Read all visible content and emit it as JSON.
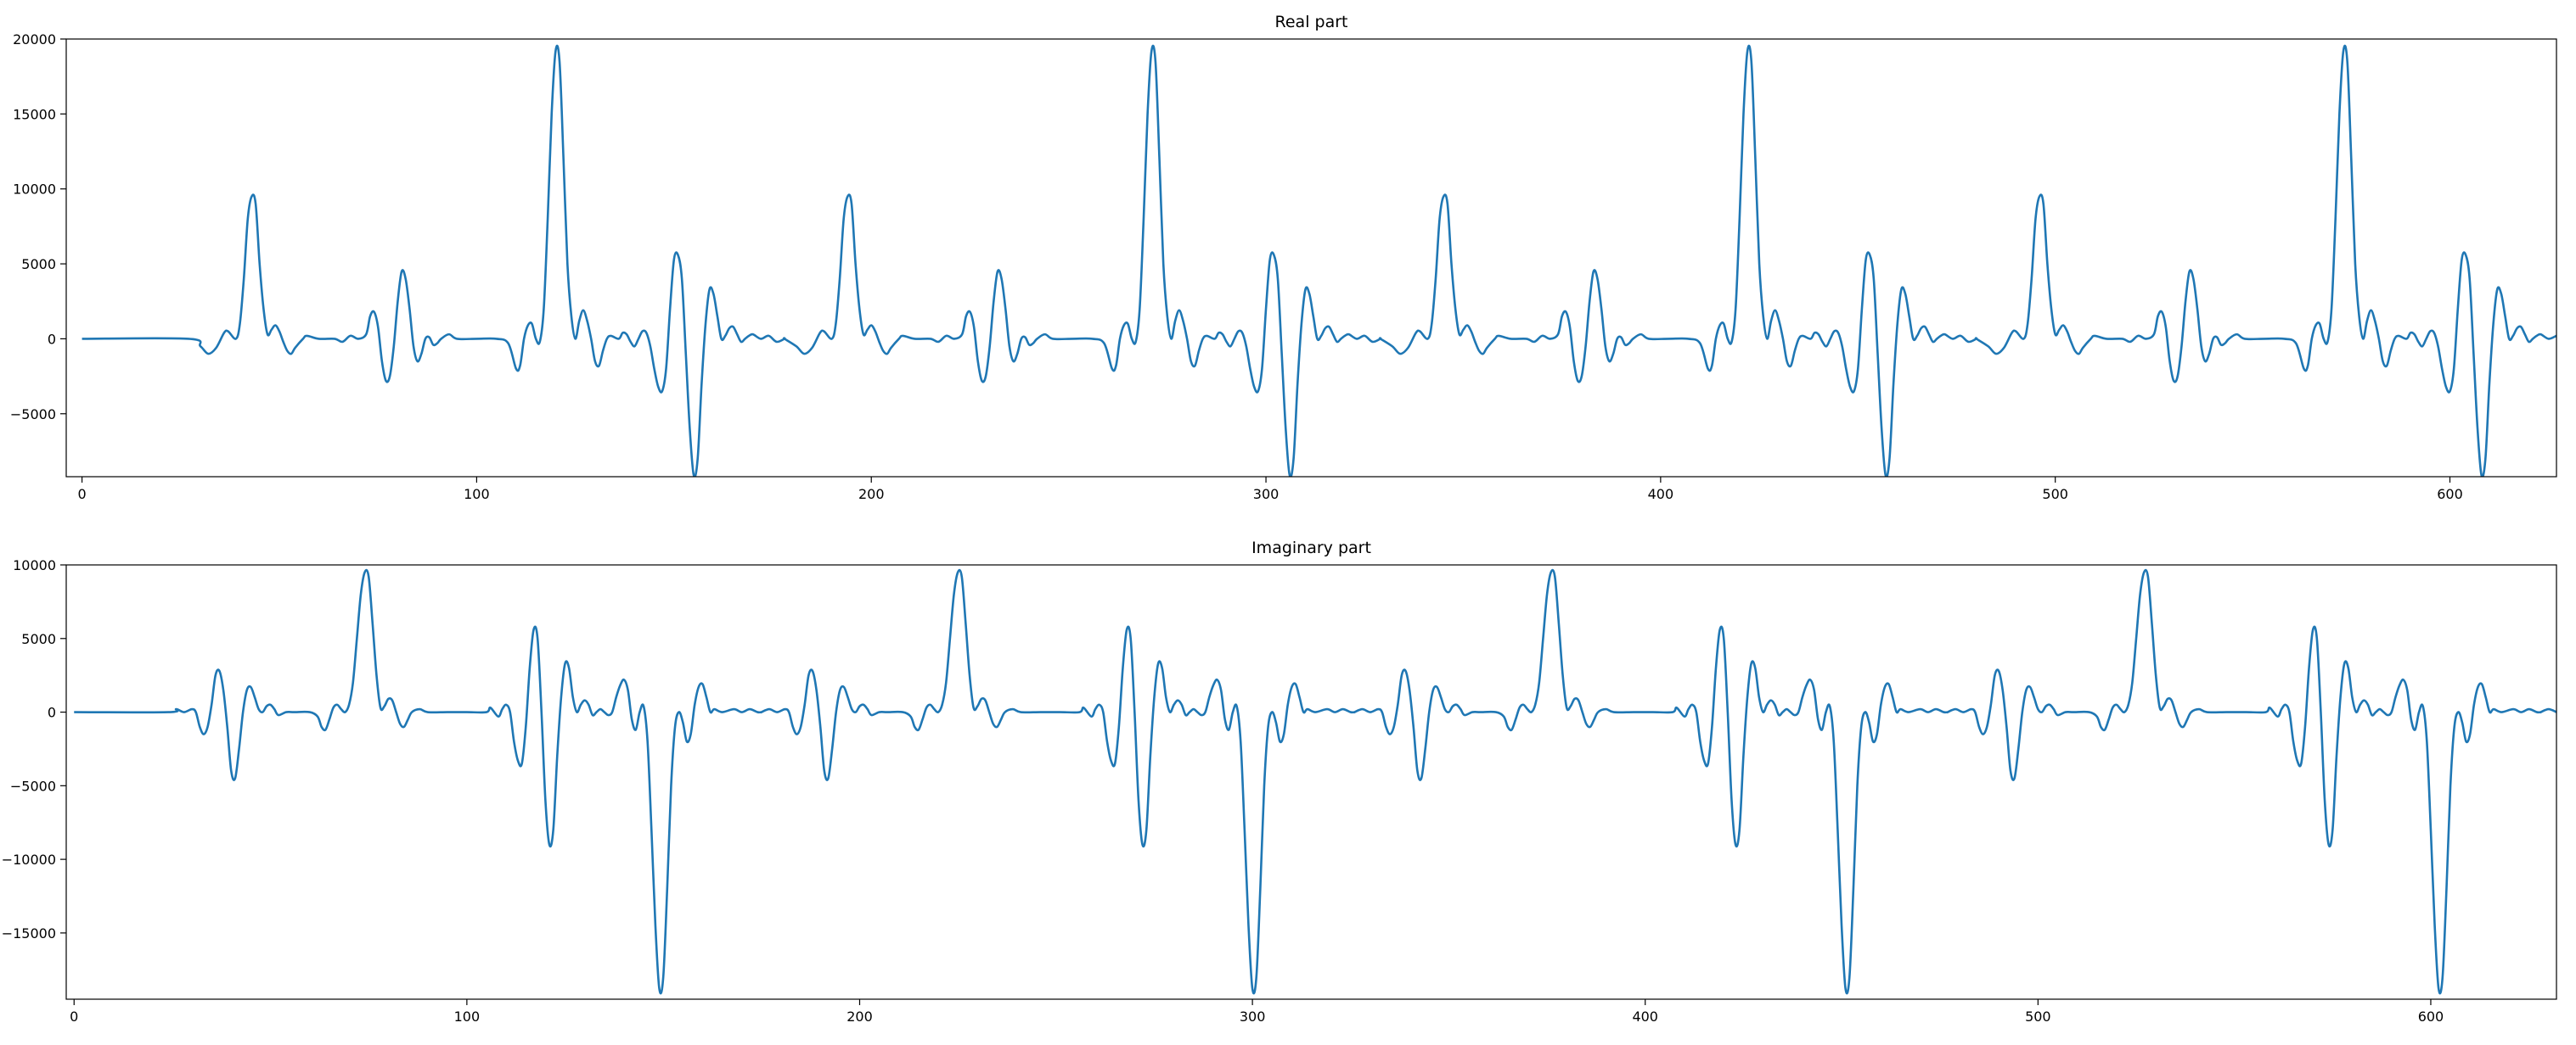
{
  "colors": {
    "line": "#1f77b4",
    "axes": "#000000",
    "background": "#ffffff"
  },
  "chart_data": [
    {
      "type": "line",
      "title": "Real part",
      "xlabel": "",
      "ylabel": "",
      "grid": false,
      "xlim": [
        -4,
        627
      ],
      "ylim": [
        -9200,
        20000
      ],
      "xticks": [
        0,
        100,
        200,
        300,
        400,
        500,
        600
      ],
      "xtick_labels": [
        "0",
        "100",
        "200",
        "300",
        "400",
        "500",
        "600"
      ],
      "yticks": [
        -5000,
        0,
        5000,
        10000,
        15000,
        20000
      ],
      "ytick_labels": [
        "−5000",
        "0",
        "5000",
        "10000",
        "15000",
        "20000"
      ],
      "series": [
        {
          "period": 151,
          "x_start": 0,
          "x_end": 627,
          "pattern_start": 27,
          "pattern": [
            [
              27,
              0
            ],
            [
              30,
              -500
            ],
            [
              32,
              -1000
            ],
            [
              34,
              -600
            ],
            [
              36,
              400
            ],
            [
              37,
              500
            ],
            [
              39,
              0
            ],
            [
              40,
              1000
            ],
            [
              41,
              4000
            ],
            [
              42,
              8000
            ],
            [
              43,
              9500
            ],
            [
              44,
              9000
            ],
            [
              45,
              5000
            ],
            [
              46,
              2000
            ],
            [
              47,
              300
            ],
            [
              48,
              600
            ],
            [
              49,
              900
            ],
            [
              50,
              500
            ],
            [
              51,
              -200
            ],
            [
              52,
              -800
            ],
            [
              53,
              -1000
            ],
            [
              54,
              -600
            ],
            [
              56,
              0
            ],
            [
              57,
              200
            ],
            [
              60,
              0
            ],
            [
              64,
              0
            ],
            [
              66,
              -200
            ],
            [
              68,
              200
            ],
            [
              70,
              0
            ],
            [
              72,
              300
            ],
            [
              73,
              1500
            ],
            [
              74,
              1800
            ],
            [
              75,
              800
            ],
            [
              76,
              -1500
            ],
            [
              77,
              -2800
            ],
            [
              78,
              -2500
            ],
            [
              79,
              -500
            ],
            [
              80,
              2500
            ],
            [
              81,
              4500
            ],
            [
              82,
              4000
            ],
            [
              83,
              2000
            ],
            [
              84,
              -500
            ],
            [
              85,
              -1500
            ],
            [
              86,
              -1000
            ],
            [
              87,
              0
            ],
            [
              88,
              100
            ],
            [
              89,
              -400
            ],
            [
              90,
              -300
            ],
            [
              91,
              0
            ],
            [
              93,
              300
            ],
            [
              95,
              0
            ],
            [
              100,
              0
            ],
            [
              105,
              0
            ],
            [
              108,
              -300
            ],
            [
              110,
              -2000
            ],
            [
              111,
              -1800
            ],
            [
              112,
              0
            ],
            [
              113,
              900
            ],
            [
              114,
              1000
            ],
            [
              115,
              0
            ],
            [
              116,
              -200
            ],
            [
              117,
              2000
            ],
            [
              118,
              8000
            ],
            [
              119,
              15000
            ],
            [
              120,
              19200
            ],
            [
              121,
              18500
            ],
            [
              122,
              12000
            ],
            [
              123,
              5000
            ],
            [
              124,
              1500
            ],
            [
              125,
              0
            ],
            [
              126,
              1200
            ],
            [
              127,
              1900
            ],
            [
              128,
              1200
            ],
            [
              129,
              0
            ],
            [
              130,
              -1500
            ],
            [
              131,
              -1800
            ],
            [
              132,
              -800
            ],
            [
              133,
              0
            ],
            [
              134,
              200
            ],
            [
              136,
              0
            ],
            [
              137,
              400
            ],
            [
              138,
              300
            ],
            [
              139,
              -200
            ],
            [
              140,
              -500
            ],
            [
              141,
              0
            ],
            [
              142,
              500
            ],
            [
              143,
              400
            ],
            [
              144,
              -500
            ],
            [
              145,
              -2000
            ],
            [
              146,
              -3200
            ],
            [
              147,
              -3500
            ],
            [
              148,
              -2000
            ],
            [
              149,
              2000
            ],
            [
              150,
              5300
            ],
            [
              151,
              5600
            ],
            [
              152,
              4000
            ],
            [
              153,
              -1000
            ],
            [
              154,
              -6000
            ],
            [
              155,
              -9100
            ],
            [
              156,
              -8000
            ],
            [
              157,
              -3000
            ],
            [
              158,
              1000
            ],
            [
              159,
              3300
            ],
            [
              160,
              3000
            ],
            [
              161,
              1500
            ],
            [
              162,
              0
            ],
            [
              163,
              200
            ],
            [
              164,
              700
            ],
            [
              165,
              800
            ],
            [
              166,
              300
            ],
            [
              167,
              -200
            ],
            [
              168,
              0
            ],
            [
              169,
              200
            ],
            [
              170,
              300
            ],
            [
              172,
              0
            ],
            [
              174,
              200
            ],
            [
              176,
              -200
            ],
            [
              178,
              0
            ]
          ]
        }
      ]
    },
    {
      "type": "line",
      "title": "Imaginary part",
      "xlabel": "",
      "ylabel": "",
      "grid": false,
      "xlim": [
        -2,
        632
      ],
      "ylim": [
        -19500,
        10000
      ],
      "xticks": [
        0,
        100,
        200,
        300,
        400,
        500,
        600
      ],
      "xtick_labels": [
        "0",
        "100",
        "200",
        "300",
        "400",
        "500",
        "600"
      ],
      "yticks": [
        -15000,
        -10000,
        -5000,
        0,
        5000,
        10000
      ],
      "ytick_labels": [
        "−15000",
        "−10000",
        "−5000",
        "0",
        "5000",
        "10000"
      ],
      "series": [
        {
          "period": 151,
          "x_start": 0,
          "x_end": 632,
          "pattern_start": 24,
          "pattern": [
            [
              24,
              0
            ],
            [
              26,
              200
            ],
            [
              28,
              0
            ],
            [
              30,
              200
            ],
            [
              31,
              0
            ],
            [
              32,
              -1000
            ],
            [
              33,
              -1500
            ],
            [
              34,
              -1000
            ],
            [
              35,
              500
            ],
            [
              36,
              2500
            ],
            [
              37,
              2800
            ],
            [
              38,
              1500
            ],
            [
              39,
              -1000
            ],
            [
              40,
              -4000
            ],
            [
              41,
              -4500
            ],
            [
              42,
              -2500
            ],
            [
              43,
              0
            ],
            [
              44,
              1500
            ],
            [
              45,
              1700
            ],
            [
              46,
              1000
            ],
            [
              47,
              200
            ],
            [
              48,
              0
            ],
            [
              49,
              400
            ],
            [
              50,
              500
            ],
            [
              51,
              200
            ],
            [
              52,
              -200
            ],
            [
              54,
              0
            ],
            [
              56,
              0
            ],
            [
              60,
              0
            ],
            [
              62,
              -300
            ],
            [
              63,
              -1000
            ],
            [
              64,
              -1200
            ],
            [
              65,
              -500
            ],
            [
              66,
              300
            ],
            [
              67,
              500
            ],
            [
              68,
              200
            ],
            [
              69,
              0
            ],
            [
              70,
              500
            ],
            [
              71,
              2000
            ],
            [
              72,
              5000
            ],
            [
              73,
              8000
            ],
            [
              74,
              9500
            ],
            [
              75,
              9200
            ],
            [
              76,
              6000
            ],
            [
              77,
              2500
            ],
            [
              78,
              300
            ],
            [
              79,
              400
            ],
            [
              80,
              900
            ],
            [
              81,
              800
            ],
            [
              82,
              0
            ],
            [
              83,
              -800
            ],
            [
              84,
              -1000
            ],
            [
              85,
              -500
            ],
            [
              86,
              0
            ],
            [
              88,
              200
            ],
            [
              90,
              0
            ],
            [
              95,
              0
            ],
            [
              100,
              0
            ],
            [
              105,
              0
            ],
            [
              106,
              300
            ],
            [
              108,
              -300
            ],
            [
              109,
              200
            ],
            [
              110,
              500
            ],
            [
              111,
              0
            ],
            [
              112,
              -2000
            ],
            [
              113,
              -3300
            ],
            [
              114,
              -3500
            ],
            [
              115,
              -1000
            ],
            [
              116,
              3000
            ],
            [
              117,
              5600
            ],
            [
              118,
              5000
            ],
            [
              119,
              0
            ],
            [
              120,
              -6000
            ],
            [
              121,
              -9000
            ],
            [
              122,
              -8000
            ],
            [
              123,
              -3000
            ],
            [
              124,
              1000
            ],
            [
              125,
              3300
            ],
            [
              126,
              3000
            ],
            [
              127,
              1000
            ],
            [
              128,
              0
            ],
            [
              129,
              500
            ],
            [
              130,
              800
            ],
            [
              131,
              500
            ],
            [
              132,
              -200
            ],
            [
              133,
              0
            ],
            [
              134,
              200
            ],
            [
              135,
              0
            ],
            [
              136,
              -200
            ],
            [
              137,
              0
            ],
            [
              138,
              1000
            ],
            [
              139,
              1800
            ],
            [
              140,
              2200
            ],
            [
              141,
              1500
            ],
            [
              142,
              -500
            ],
            [
              143,
              -1200
            ],
            [
              144,
              0
            ],
            [
              145,
              400
            ],
            [
              146,
              -2000
            ],
            [
              147,
              -8000
            ],
            [
              148,
              -14500
            ],
            [
              149,
              -18800
            ],
            [
              150,
              -18000
            ],
            [
              151,
              -12000
            ],
            [
              152,
              -5000
            ],
            [
              153,
              -1000
            ],
            [
              154,
              0
            ],
            [
              155,
              -700
            ],
            [
              156,
              -2000
            ],
            [
              157,
              -1500
            ],
            [
              158,
              500
            ],
            [
              159,
              1700
            ],
            [
              160,
              1900
            ],
            [
              161,
              1000
            ],
            [
              162,
              0
            ],
            [
              163,
              200
            ],
            [
              165,
              0
            ],
            [
              168,
              200
            ],
            [
              170,
              0
            ],
            [
              172,
              200
            ],
            [
              174,
              0
            ],
            [
              175,
              0
            ]
          ]
        }
      ]
    }
  ]
}
